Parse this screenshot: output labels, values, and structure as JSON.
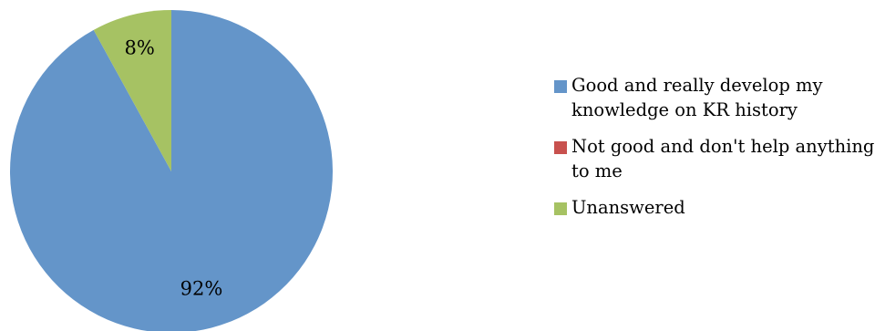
{
  "chart_data": {
    "type": "pie",
    "categories": [
      " Good and really develop my knowledge on KR history",
      "Not good and don't help anything to me",
      "Unanswered"
    ],
    "values": [
      92,
      0,
      8
    ],
    "data_labels": [
      "92%",
      "",
      "8%"
    ],
    "colors": [
      "#6495c9",
      "#c8514e",
      "#a6c263"
    ],
    "legend_position": "right",
    "start_angle": "12 o'clock",
    "direction": "clockwise"
  }
}
